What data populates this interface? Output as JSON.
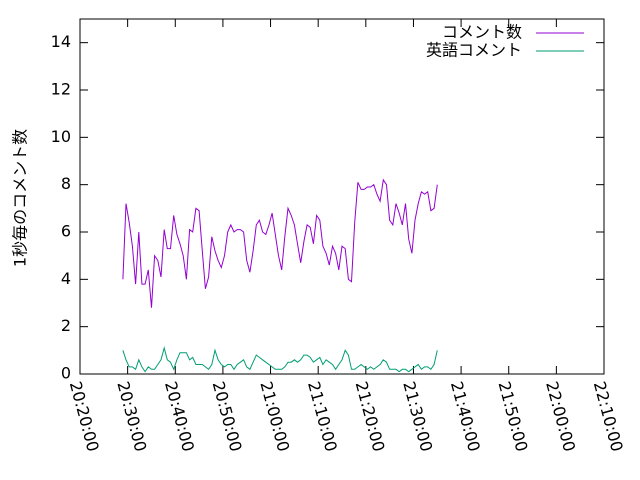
{
  "chart_data": {
    "type": "line",
    "title": "",
    "xlabel": "",
    "ylabel": "1秒毎のコメント数",
    "xlim": [
      "20:20:00",
      "22:10:00"
    ],
    "ylim": [
      0,
      15
    ],
    "x_ticks": [
      "20:20:00",
      "20:30:00",
      "20:40:00",
      "20:50:00",
      "21:00:00",
      "21:10:00",
      "21:20:00",
      "21:30:00",
      "21:40:00",
      "21:50:00",
      "22:00:00",
      "22:10:00"
    ],
    "y_ticks": [
      "0",
      "2",
      "4",
      "6",
      "8",
      "10",
      "12",
      "14"
    ],
    "grid": false,
    "legend_position": "top-right",
    "series": [
      {
        "name": "コメント数",
        "color": "#9400d3",
        "points": [
          [
            "20:29:00",
            4.0
          ],
          [
            "20:29:40",
            7.2
          ],
          [
            "20:30:20",
            6.4
          ],
          [
            "20:31:00",
            5.4
          ],
          [
            "20:31:40",
            3.8
          ],
          [
            "20:32:20",
            6.0
          ],
          [
            "20:33:00",
            3.8
          ],
          [
            "20:33:40",
            3.8
          ],
          [
            "20:34:20",
            4.4
          ],
          [
            "20:35:00",
            2.8
          ],
          [
            "20:35:40",
            5.0
          ],
          [
            "20:36:20",
            4.8
          ],
          [
            "20:37:00",
            4.1
          ],
          [
            "20:37:40",
            6.1
          ],
          [
            "20:38:20",
            5.3
          ],
          [
            "20:39:00",
            5.3
          ],
          [
            "20:39:40",
            6.7
          ],
          [
            "20:40:20",
            5.9
          ],
          [
            "20:41:00",
            5.5
          ],
          [
            "20:41:40",
            5.0
          ],
          [
            "20:42:20",
            4.0
          ],
          [
            "20:43:00",
            6.1
          ],
          [
            "20:43:40",
            6.0
          ],
          [
            "20:44:20",
            7.0
          ],
          [
            "20:45:00",
            6.9
          ],
          [
            "20:45:40",
            5.2
          ],
          [
            "20:46:20",
            3.6
          ],
          [
            "20:47:00",
            4.1
          ],
          [
            "20:47:40",
            5.8
          ],
          [
            "20:48:20",
            5.2
          ],
          [
            "20:49:00",
            4.8
          ],
          [
            "20:49:40",
            4.5
          ],
          [
            "20:50:20",
            5.0
          ],
          [
            "20:51:00",
            6.0
          ],
          [
            "20:51:40",
            6.3
          ],
          [
            "20:52:20",
            6.0
          ],
          [
            "20:53:00",
            6.1
          ],
          [
            "20:53:40",
            6.1
          ],
          [
            "20:54:20",
            6.0
          ],
          [
            "20:55:00",
            4.8
          ],
          [
            "20:55:40",
            4.3
          ],
          [
            "20:56:20",
            5.2
          ],
          [
            "20:57:00",
            6.3
          ],
          [
            "20:57:40",
            6.5
          ],
          [
            "20:58:20",
            6.0
          ],
          [
            "20:59:00",
            5.9
          ],
          [
            "20:59:40",
            6.3
          ],
          [
            "21:00:20",
            6.8
          ],
          [
            "21:01:00",
            5.9
          ],
          [
            "21:01:40",
            5.0
          ],
          [
            "21:02:20",
            4.4
          ],
          [
            "21:03:00",
            5.8
          ],
          [
            "21:03:40",
            7.0
          ],
          [
            "21:04:20",
            6.7
          ],
          [
            "21:05:00",
            6.3
          ],
          [
            "21:05:40",
            5.5
          ],
          [
            "21:06:20",
            4.7
          ],
          [
            "21:07:00",
            5.6
          ],
          [
            "21:07:40",
            6.3
          ],
          [
            "21:08:20",
            6.2
          ],
          [
            "21:09:00",
            5.5
          ],
          [
            "21:09:40",
            6.7
          ],
          [
            "21:10:20",
            6.5
          ],
          [
            "21:11:00",
            5.4
          ],
          [
            "21:11:40",
            5.1
          ],
          [
            "21:12:20",
            4.6
          ],
          [
            "21:13:00",
            5.4
          ],
          [
            "21:13:40",
            5.1
          ],
          [
            "21:14:20",
            4.4
          ],
          [
            "21:15:00",
            5.4
          ],
          [
            "21:15:40",
            5.3
          ],
          [
            "21:16:20",
            4.0
          ],
          [
            "21:17:00",
            3.9
          ],
          [
            "21:17:40",
            6.4
          ],
          [
            "21:18:20",
            8.1
          ],
          [
            "21:19:00",
            7.8
          ],
          [
            "21:19:40",
            7.8
          ],
          [
            "21:20:20",
            7.9
          ],
          [
            "21:21:00",
            7.9
          ],
          [
            "21:21:40",
            8.0
          ],
          [
            "21:22:20",
            7.6
          ],
          [
            "21:23:00",
            7.3
          ],
          [
            "21:23:40",
            8.2
          ],
          [
            "21:24:20",
            8.0
          ],
          [
            "21:25:00",
            6.5
          ],
          [
            "21:25:40",
            6.3
          ],
          [
            "21:26:20",
            7.2
          ],
          [
            "21:27:00",
            6.8
          ],
          [
            "21:27:40",
            6.3
          ],
          [
            "21:28:20",
            7.2
          ],
          [
            "21:29:00",
            5.7
          ],
          [
            "21:29:40",
            5.1
          ],
          [
            "21:30:20",
            6.5
          ],
          [
            "21:31:00",
            7.2
          ],
          [
            "21:31:40",
            7.7
          ],
          [
            "21:32:20",
            7.6
          ],
          [
            "21:33:00",
            7.7
          ],
          [
            "21:33:40",
            6.9
          ],
          [
            "21:34:20",
            7.0
          ],
          [
            "21:35:00",
            8.0
          ]
        ]
      },
      {
        "name": "英語コメント",
        "color": "#009e73",
        "points": [
          [
            "20:29:00",
            1.0
          ],
          [
            "20:29:40",
            0.6
          ],
          [
            "20:30:20",
            0.3
          ],
          [
            "20:31:00",
            0.3
          ],
          [
            "20:31:40",
            0.2
          ],
          [
            "20:32:20",
            0.6
          ],
          [
            "20:33:00",
            0.3
          ],
          [
            "20:33:40",
            0.1
          ],
          [
            "20:34:20",
            0.3
          ],
          [
            "20:35:00",
            0.2
          ],
          [
            "20:35:40",
            0.2
          ],
          [
            "20:36:20",
            0.4
          ],
          [
            "20:37:00",
            0.6
          ],
          [
            "20:37:40",
            1.1
          ],
          [
            "20:38:20",
            0.6
          ],
          [
            "20:39:00",
            0.5
          ],
          [
            "20:39:40",
            0.2
          ],
          [
            "20:40:20",
            0.6
          ],
          [
            "20:41:00",
            0.9
          ],
          [
            "20:41:40",
            0.9
          ],
          [
            "20:42:20",
            0.9
          ],
          [
            "20:43:00",
            0.6
          ],
          [
            "20:43:40",
            0.7
          ],
          [
            "20:44:20",
            0.4
          ],
          [
            "20:45:00",
            0.4
          ],
          [
            "20:45:40",
            0.4
          ],
          [
            "20:46:20",
            0.3
          ],
          [
            "20:47:00",
            0.2
          ],
          [
            "20:47:40",
            0.4
          ],
          [
            "20:48:20",
            1.0
          ],
          [
            "20:49:00",
            0.6
          ],
          [
            "20:49:40",
            0.4
          ],
          [
            "20:50:20",
            0.3
          ],
          [
            "20:51:00",
            0.4
          ],
          [
            "20:51:40",
            0.4
          ],
          [
            "20:52:20",
            0.2
          ],
          [
            "20:53:00",
            0.4
          ],
          [
            "20:53:40",
            0.5
          ],
          [
            "20:54:20",
            0.6
          ],
          [
            "20:55:00",
            0.3
          ],
          [
            "20:55:40",
            0.2
          ],
          [
            "20:56:20",
            0.5
          ],
          [
            "20:57:00",
            0.8
          ],
          [
            "20:57:40",
            0.7
          ],
          [
            "20:58:20",
            0.6
          ],
          [
            "20:59:00",
            0.5
          ],
          [
            "20:59:40",
            0.4
          ],
          [
            "21:00:20",
            0.3
          ],
          [
            "21:01:00",
            0.2
          ],
          [
            "21:01:40",
            0.2
          ],
          [
            "21:02:20",
            0.2
          ],
          [
            "21:03:00",
            0.3
          ],
          [
            "21:03:40",
            0.5
          ],
          [
            "21:04:20",
            0.5
          ],
          [
            "21:05:00",
            0.6
          ],
          [
            "21:05:40",
            0.5
          ],
          [
            "21:06:20",
            0.6
          ],
          [
            "21:07:00",
            0.8
          ],
          [
            "21:07:40",
            0.8
          ],
          [
            "21:08:20",
            0.7
          ],
          [
            "21:09:00",
            0.5
          ],
          [
            "21:09:40",
            0.6
          ],
          [
            "21:10:20",
            0.7
          ],
          [
            "21:11:00",
            0.4
          ],
          [
            "21:11:40",
            0.6
          ],
          [
            "21:12:20",
            0.5
          ],
          [
            "21:13:00",
            0.4
          ],
          [
            "21:13:40",
            0.2
          ],
          [
            "21:14:20",
            0.4
          ],
          [
            "21:15:00",
            0.6
          ],
          [
            "21:15:40",
            1.0
          ],
          [
            "21:16:20",
            0.8
          ],
          [
            "21:17:00",
            0.2
          ],
          [
            "21:17:40",
            0.2
          ],
          [
            "21:18:20",
            0.3
          ],
          [
            "21:19:00",
            0.4
          ],
          [
            "21:19:40",
            0.3
          ],
          [
            "21:20:20",
            0.2
          ],
          [
            "21:21:00",
            0.3
          ],
          [
            "21:21:40",
            0.2
          ],
          [
            "21:22:20",
            0.3
          ],
          [
            "21:23:00",
            0.4
          ],
          [
            "21:23:40",
            0.6
          ],
          [
            "21:24:20",
            0.5
          ],
          [
            "21:25:00",
            0.2
          ],
          [
            "21:25:40",
            0.2
          ],
          [
            "21:26:20",
            0.2
          ],
          [
            "21:27:00",
            0.1
          ],
          [
            "21:27:40",
            0.2
          ],
          [
            "21:28:20",
            0.2
          ],
          [
            "21:29:00",
            0.1
          ],
          [
            "21:29:40",
            0.2
          ],
          [
            "21:30:20",
            0.3
          ],
          [
            "21:31:00",
            0.4
          ],
          [
            "21:31:40",
            0.2
          ],
          [
            "21:32:20",
            0.3
          ],
          [
            "21:33:00",
            0.3
          ],
          [
            "21:33:40",
            0.2
          ],
          [
            "21:34:20",
            0.4
          ],
          [
            "21:35:00",
            1.0
          ]
        ]
      }
    ]
  }
}
